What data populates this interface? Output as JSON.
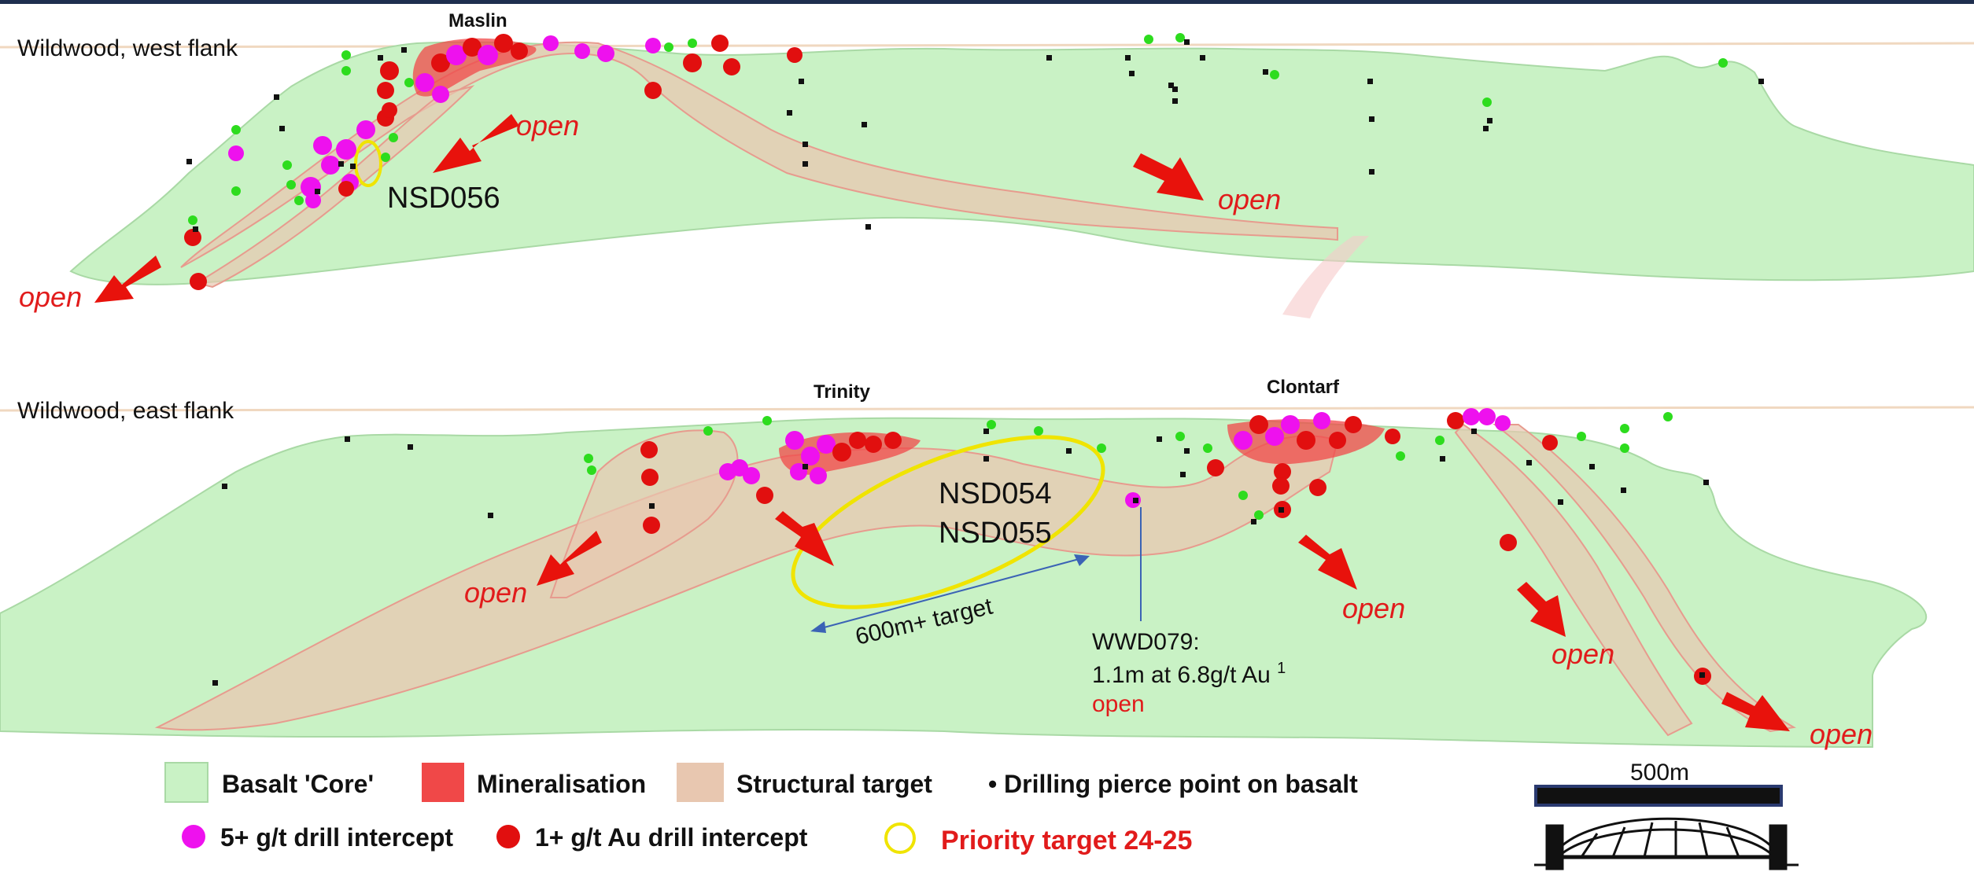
{
  "sections": {
    "west": {
      "title": "Wildwood, west flank",
      "deposit": "Maslin",
      "hole": "NSD056"
    },
    "east": {
      "title": "Wildwood, east flank",
      "deposit_1": "Trinity",
      "deposit_2": "Clontarf",
      "hole_1": "NSD054",
      "hole_2": "NSD055",
      "target": "600m+ target",
      "intercept_line_1": "WWD079:",
      "intercept_line_2": "1.1m at 6.8g/t Au ",
      "intercept_sup": "1",
      "intercept_open": "open"
    }
  },
  "open_label": "open",
  "legend": {
    "basalt": "Basalt 'Core'",
    "mineralisation": "Mineralisation",
    "structural": "Structural target",
    "drilling": "Drilling pierce point on basalt",
    "high_grade": "5+ g/t drill intercept",
    "low_grade": "1+ g/t Au drill intercept",
    "priority": "Priority target 24-25"
  },
  "scale_bar": {
    "label": "500m"
  },
  "colors": {
    "basalt": "#c8f2c4",
    "mineralisation": "#f04848",
    "structural": "#e8c7b0",
    "high_grade": "#ee11ee",
    "low_grade": "#e10f0f",
    "priority": "#f0e400",
    "drill": "#111111"
  }
}
